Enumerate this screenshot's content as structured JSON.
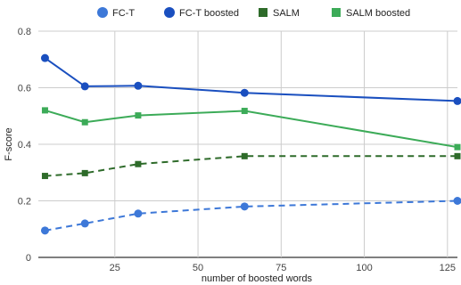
{
  "chart_data": {
    "type": "line",
    "title": "",
    "xlabel": "number of boosted words",
    "ylabel": "F-score",
    "xlim": [
      2,
      128
    ],
    "ylim": [
      0,
      0.8
    ],
    "x_ticks": [
      25,
      50,
      75,
      100,
      125
    ],
    "y_ticks": [
      0,
      0.2,
      0.4,
      0.6,
      0.8
    ],
    "x_tick_labels": [
      "25",
      "50",
      "75",
      "100",
      "125"
    ],
    "y_tick_labels": [
      "0",
      "0.2",
      "0.4",
      "0.6",
      "0.8"
    ],
    "grid": true,
    "legend_position": "top",
    "x": [
      4,
      16,
      32,
      64,
      128
    ],
    "series": [
      {
        "name": "FC-T",
        "values": [
          0.095,
          0.12,
          0.155,
          0.18,
          0.2
        ],
        "color": "#3d78d8",
        "dash": true,
        "marker": "circle"
      },
      {
        "name": "FC-T boosted",
        "values": [
          0.705,
          0.605,
          0.607,
          0.582,
          0.553
        ],
        "color": "#1a4fbf",
        "dash": false,
        "marker": "circle"
      },
      {
        "name": "SALM",
        "values": [
          0.288,
          0.298,
          0.33,
          0.358,
          0.358
        ],
        "color": "#2e6b2a",
        "dash": true,
        "marker": "square"
      },
      {
        "name": "SALM boosted",
        "values": [
          0.52,
          0.478,
          0.502,
          0.518,
          0.39
        ],
        "color": "#3cab58",
        "dash": false,
        "marker": "square"
      }
    ]
  }
}
